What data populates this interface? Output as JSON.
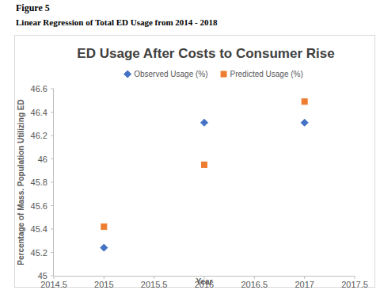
{
  "figure": {
    "label": "Figure 5",
    "caption": "Linear Regression of Total ED Usage from 2014 - 2018"
  },
  "chart_data": {
    "type": "scatter",
    "title": "ED Usage After Costs to Consumer Rise",
    "x_label": "Year",
    "y_label": "Percentage of Mass. Population Utilizing ED",
    "x": [
      2015,
      2016,
      2017
    ],
    "series": [
      {
        "name": "Observed Usage (%)",
        "color": "#4472c4",
        "marker": "diamond",
        "values": [
          45.24,
          46.31,
          46.31
        ]
      },
      {
        "name": "Predicted Usage (%)",
        "color": "#ed7d31",
        "marker": "square",
        "values": [
          45.42,
          45.95,
          46.49
        ]
      }
    ],
    "xlim": [
      2014.5,
      2017.5
    ],
    "xticks": [
      2014.5,
      2015,
      2015.5,
      2016,
      2016.5,
      2017,
      2017.5
    ],
    "ylim": [
      45,
      46.6
    ],
    "yticks": [
      45,
      45.2,
      45.4,
      45.6,
      45.8,
      46,
      46.2,
      46.4,
      46.6
    ],
    "grid": false,
    "legend": "top"
  }
}
